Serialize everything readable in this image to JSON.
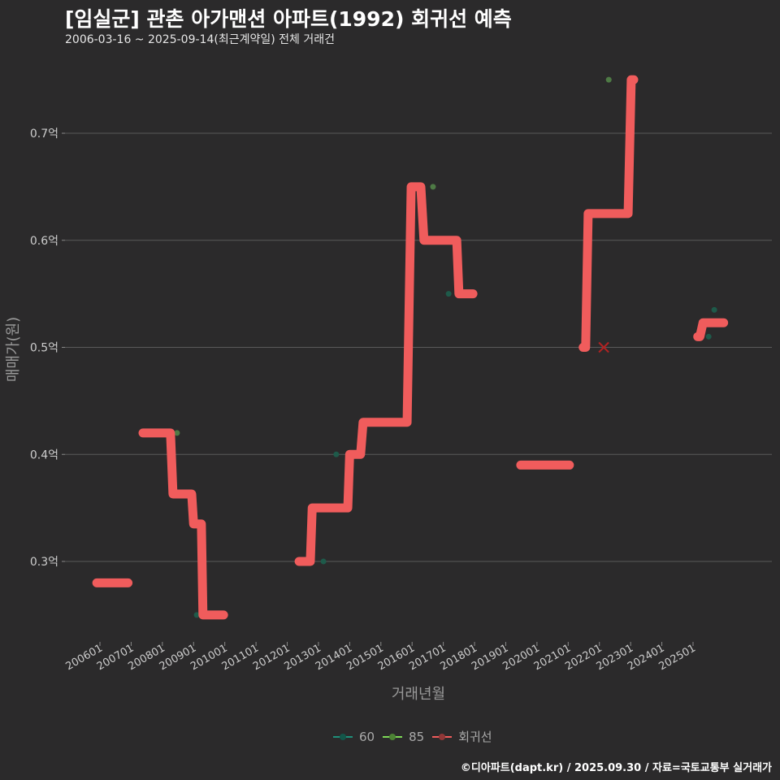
{
  "header": {
    "title": "[임실군] 관촌 아가맨션 아파트(1992) 회귀선 예측",
    "subtitle": "2006-03-16 ~ 2025-09-14(최근계약일) 전체 거래건"
  },
  "caption": "©디아파트(dapt.kr) / 2025.09.30 / 자료=국토교통부 실거래가",
  "chart_data": {
    "type": "line",
    "xlabel": "거래년월",
    "ylabel": "매매가(원)",
    "x_ticks": [
      "200601",
      "200701",
      "200801",
      "200901",
      "201001",
      "201101",
      "201201",
      "201301",
      "201401",
      "201501",
      "201601",
      "201701",
      "201801",
      "201901",
      "202001",
      "202101",
      "202201",
      "202301",
      "202401",
      "202501"
    ],
    "y_ticks": [
      {
        "v": 0.3,
        "label": "0.3억"
      },
      {
        "v": 0.4,
        "label": "0.4억"
      },
      {
        "v": 0.5,
        "label": "0.5억"
      },
      {
        "v": 0.6,
        "label": "0.6억"
      },
      {
        "v": 0.7,
        "label": "0.7억"
      }
    ],
    "xlim": [
      2006,
      2025
    ],
    "ylim": [
      0.3,
      0.7
    ],
    "colors": {
      "60": "#1f8f7a",
      "85": "#7ed957",
      "회귀선": "#f05c5c",
      "grid": "#5a5a5a"
    },
    "legend": [
      {
        "key": "60",
        "label": "60"
      },
      {
        "key": "85",
        "label": "85"
      },
      {
        "key": "회귀선",
        "label": "회귀선"
      }
    ],
    "series": [
      {
        "name": "60",
        "type": "scatter",
        "points": [
          [
            2009.1,
            0.25
          ],
          [
            2013.16,
            0.3
          ],
          [
            2013.57,
            0.4
          ],
          [
            2017.17,
            0.55
          ],
          [
            2025.5,
            0.51
          ],
          [
            2025.68,
            0.535
          ]
        ]
      },
      {
        "name": "85",
        "type": "scatter",
        "points": [
          [
            2008.47,
            0.42
          ],
          [
            2016.67,
            0.65
          ],
          [
            2022.3,
            0.75
          ]
        ]
      },
      {
        "name": "회귀선",
        "type": "step",
        "segments": [
          [
            [
              2005.9,
              0.28
            ],
            [
              2006.9,
              0.28
            ]
          ],
          [
            [
              2007.38,
              0.42
            ],
            [
              2008.26,
              0.42
            ],
            [
              2008.34,
              0.363
            ],
            [
              2008.94,
              0.363
            ],
            [
              2009.0,
              0.335
            ],
            [
              2009.25,
              0.335
            ],
            [
              2009.3,
              0.25
            ],
            [
              2009.96,
              0.25
            ]
          ],
          [
            [
              2012.38,
              0.3
            ],
            [
              2012.74,
              0.3
            ],
            [
              2012.8,
              0.35
            ],
            [
              2013.94,
              0.35
            ],
            [
              2014.0,
              0.4
            ],
            [
              2014.35,
              0.4
            ],
            [
              2014.43,
              0.43
            ],
            [
              2015.84,
              0.43
            ],
            [
              2015.97,
              0.65
            ],
            [
              2016.28,
              0.65
            ],
            [
              2016.38,
              0.6
            ],
            [
              2017.43,
              0.6
            ],
            [
              2017.5,
              0.55
            ],
            [
              2017.95,
              0.55
            ]
          ],
          [
            [
              2019.48,
              0.39
            ],
            [
              2021.04,
              0.39
            ]
          ],
          [
            [
              2021.48,
              0.5
            ],
            [
              2021.56,
              0.5
            ],
            [
              2021.64,
              0.625
            ],
            [
              2022.92,
              0.625
            ],
            [
              2023.02,
              0.75
            ],
            [
              2023.1,
              0.75
            ]
          ],
          [
            [
              2025.15,
              0.51
            ],
            [
              2025.22,
              0.51
            ],
            [
              2025.32,
              0.523
            ],
            [
              2025.98,
              0.523
            ]
          ]
        ]
      },
      {
        "name": "excluded",
        "type": "x-marker",
        "points": [
          [
            2022.14,
            0.5
          ]
        ]
      }
    ]
  }
}
